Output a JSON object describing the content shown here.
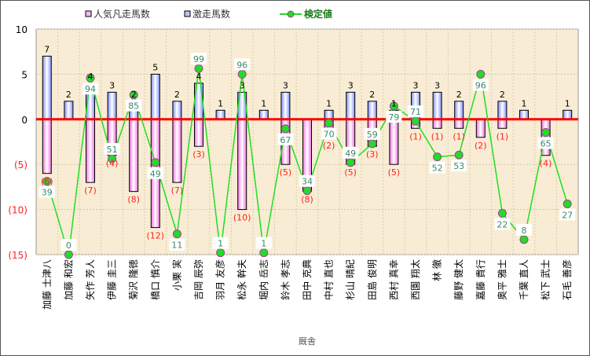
{
  "chart_data": {
    "type": "bar",
    "title": "",
    "xlabel": "厩舎",
    "ylabel": "",
    "ylim": [
      -15,
      10
    ],
    "y2lim": [
      0,
      120
    ],
    "yticks": [
      {
        "v": 10,
        "label": "10"
      },
      {
        "v": 5,
        "label": "5"
      },
      {
        "v": 0,
        "label": "0"
      },
      {
        "v": -5,
        "label": "(5)"
      },
      {
        "v": -10,
        "label": "(10)"
      },
      {
        "v": -15,
        "label": "(15)"
      }
    ],
    "categories": [
      "加藤 士津八",
      "加藤 和宏",
      "矢作 芳人",
      "伊藤 圭三",
      "菊沢 隆徳",
      "橋口 慎介",
      "小栗 実",
      "吉岡 辰弥",
      "羽月 友彦",
      "松永 幹夫",
      "堀内 岳志",
      "鈴木 孝志",
      "田中 克典",
      "中村 直也",
      "杉山 晴紀",
      "田島 俊明",
      "西村 真幸",
      "西園 翔太",
      "林 徹",
      "藤野 健太",
      "嘉藤 貴行",
      "奥平 雅士",
      "千葉 直人",
      "松下 武士",
      "石毛 善彦"
    ],
    "series": [
      {
        "name": "人気凡走馬数",
        "type": "bar",
        "values": [
          -6,
          0,
          -7,
          -4,
          -8,
          -12,
          -7,
          -3,
          0,
          -10,
          0,
          -5,
          -8,
          -2,
          -5,
          -3,
          -5,
          -1,
          -1,
          -1,
          -2,
          -1,
          0,
          -4,
          0
        ]
      },
      {
        "name": "激走馬数",
        "type": "bar",
        "values": [
          7,
          2,
          4,
          3,
          2,
          5,
          2,
          4,
          1,
          3,
          1,
          3,
          0,
          1,
          3,
          2,
          1,
          3,
          3,
          2,
          0,
          2,
          1,
          0,
          1
        ]
      },
      {
        "name": "検定値",
        "type": "line",
        "axis": "secondary",
        "values": [
          39,
          0,
          94,
          51,
          85,
          49,
          11,
          99,
          1,
          96,
          1,
          67,
          34,
          70,
          49,
          59,
          79,
          71,
          52,
          53,
          96,
          22,
          8,
          65,
          27
        ]
      }
    ],
    "legend": "top",
    "colors": {
      "neg": "#f9b8f0",
      "pos": "#b8c4ff",
      "line": "#22dd22",
      "marker": "#22dd22",
      "zero": "#ff0000",
      "neglabel": "#ff2020",
      "linelabel": "#3a8a6a",
      "bg": "#f8edd4"
    }
  }
}
